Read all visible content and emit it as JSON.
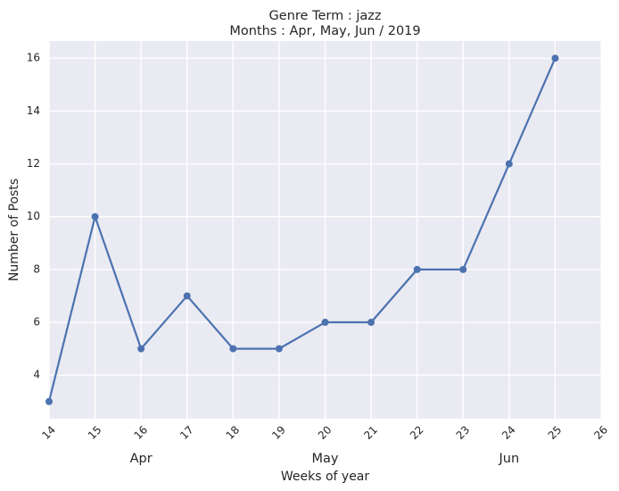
{
  "chart_data": {
    "type": "line",
    "title": "Genre Term : jazz",
    "subtitle": "Months : Apr, May, Jun / 2019",
    "xlabel": "Weeks of year",
    "ylabel": "Number of Posts",
    "xlim": [
      14,
      26
    ],
    "ylim": [
      2.35,
      16.65
    ],
    "x_ticks": [
      "14",
      "15",
      "16",
      "17",
      "18",
      "19",
      "20",
      "21",
      "22",
      "23",
      "24",
      "25",
      "26"
    ],
    "y_ticks": [
      "4",
      "6",
      "8",
      "10",
      "12",
      "14",
      "16"
    ],
    "month_labels": [
      {
        "label": "Apr",
        "week": 16
      },
      {
        "label": "May",
        "week": 20
      },
      {
        "label": "Jun",
        "week": 24
      }
    ],
    "x": [
      14,
      15,
      16,
      17,
      18,
      19,
      20,
      21,
      22,
      23,
      24,
      25
    ],
    "values": [
      3,
      10,
      5,
      7,
      5,
      5,
      6,
      6,
      8,
      8,
      12,
      16
    ],
    "grid": true,
    "colors": {
      "plot_background": "#eaeaf2",
      "grid": "#ffffff",
      "line": "#4c72b0",
      "text": "#262626"
    }
  }
}
